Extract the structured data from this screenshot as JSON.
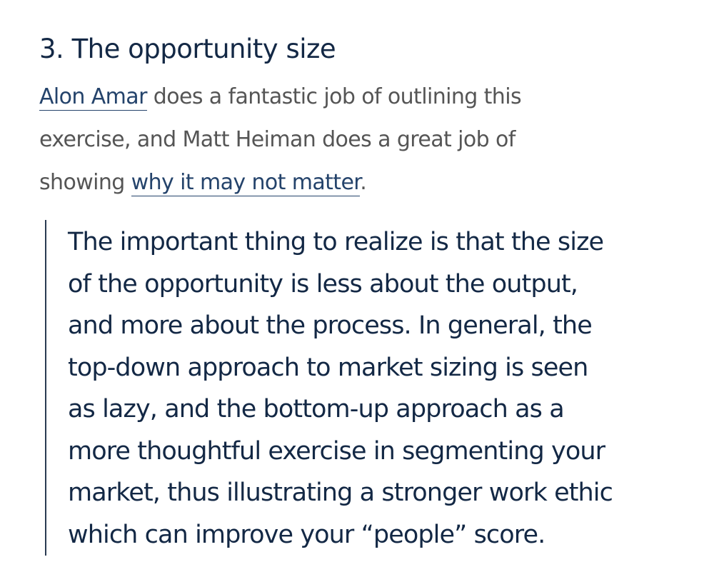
{
  "heading": "3. The opportunity size",
  "intro": {
    "link1": "Alon Amar",
    "text1": " does a fantastic job of outlining this exercise, and Matt Heiman does a great job of showing ",
    "link2": "why it may not matter",
    "text2": "."
  },
  "quote": {
    "lines": [
      "The important thing to realize is that the size",
      "of the opportunity is less about the output,",
      "and more about the process. In general, the",
      "top-down approach to market sizing is seen",
      "as lazy, and the bottom-up approach as a",
      "more thoughtful exercise in segmenting your",
      "market, thus illustrating a stronger work ethic",
      "which can improve your “people” score."
    ]
  }
}
